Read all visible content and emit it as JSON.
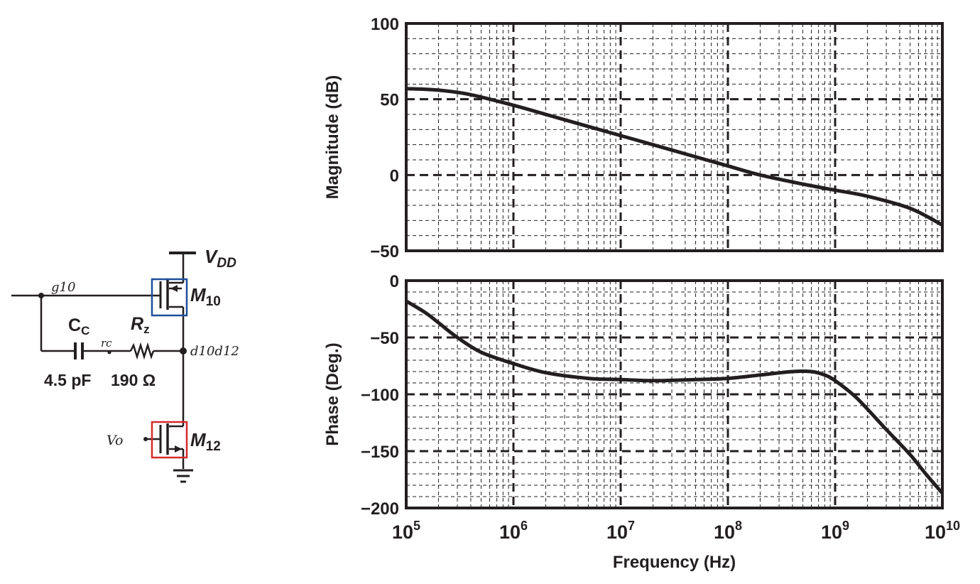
{
  "circuit": {
    "supply_label_main": "V",
    "supply_label_sub": "DD",
    "m10_main": "M",
    "m10_sub": "10",
    "m12_main": "M",
    "m12_sub": "12",
    "cc_main": "C",
    "cc_sub": "C",
    "rz_main": "R",
    "rz_sub": "z",
    "cc_value": "4.5 pF",
    "rz_value": "190 Ω",
    "gate10_note": "g10",
    "node_rc_note": "rc",
    "drain_note": "d10d12",
    "input_note": "Vo",
    "m10_highlight_color": "#1f4e9c",
    "m12_highlight_color": "#d42a2a"
  },
  "chart_data": [
    {
      "type": "line",
      "title": "",
      "xlabel": "Frequency (Hz)",
      "ylabel": "Magnitude (dB)",
      "xscale": "log",
      "xlim": [
        100000,
        10000000000
      ],
      "ylim": [
        -50,
        100
      ],
      "x_tick_base": "10",
      "x_tick_exponents": [
        "5",
        "6",
        "7",
        "8",
        "9",
        "10"
      ],
      "y_ticks": [
        "100",
        "50",
        "0",
        "−50"
      ],
      "y_tick_values": [
        100,
        50,
        0,
        -50
      ],
      "grid": true,
      "series": [
        {
          "x": [
            100000,
            200000,
            400000,
            1000000,
            2000000,
            5000000,
            10000000,
            20000000,
            50000000,
            100000000,
            200000000,
            500000000,
            1000000000,
            2000000000,
            5000000000,
            10000000000
          ],
          "y": [
            57,
            56,
            53,
            46,
            40,
            32,
            26,
            20,
            12,
            6,
            0,
            -6,
            -10,
            -14,
            -22,
            -33
          ]
        }
      ]
    },
    {
      "type": "line",
      "title": "",
      "xlabel": "Frequency (Hz)",
      "ylabel": "Phase (Deg.)",
      "xscale": "log",
      "xlim": [
        100000,
        10000000000
      ],
      "ylim": [
        -200,
        0
      ],
      "x_tick_base": "10",
      "x_tick_exponents": [
        "5",
        "6",
        "7",
        "8",
        "9",
        "10"
      ],
      "y_ticks": [
        "0",
        "−50",
        "−100",
        "−150",
        "−200"
      ],
      "y_tick_values": [
        0,
        -50,
        -100,
        -150,
        -200
      ],
      "grid": true,
      "series": [
        {
          "x": [
            100000,
            150000,
            200000,
            300000,
            500000,
            1000000,
            2000000,
            5000000,
            10000000,
            20000000,
            50000000,
            100000000,
            200000000,
            400000000,
            600000000,
            800000000,
            1000000000,
            1500000000,
            2000000000,
            3000000000,
            5000000000,
            7000000000,
            10000000000
          ],
          "y": [
            -18,
            -28,
            -37,
            -50,
            -63,
            -73,
            -81,
            -86,
            -87,
            -88,
            -87,
            -86,
            -83,
            -80,
            -80,
            -83,
            -88,
            -101,
            -113,
            -131,
            -153,
            -170,
            -187
          ]
        }
      ]
    }
  ]
}
